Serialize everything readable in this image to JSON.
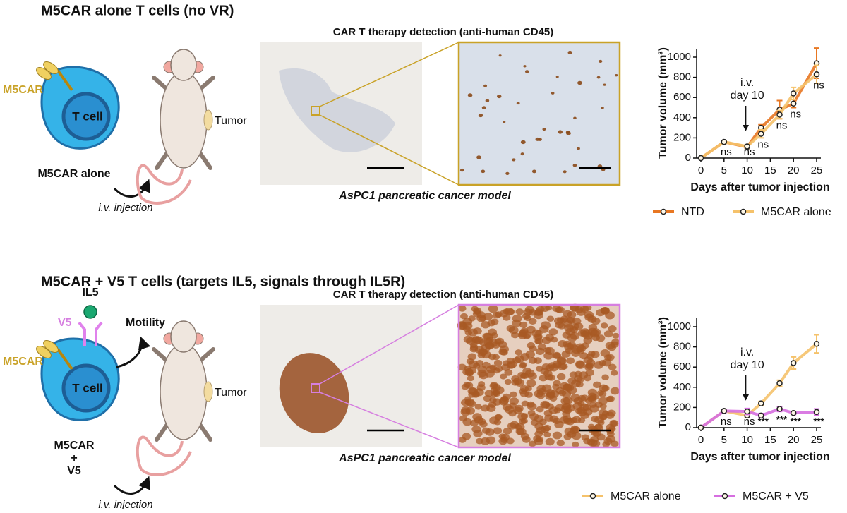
{
  "panels": [
    {
      "title": "M5CAR alone T cells (no VR)",
      "car_label": "M5CAR",
      "cell_label": "T cell",
      "tumor_label": "Tumor",
      "treatment": [
        "M5CAR alone"
      ],
      "route": "i.v. injection",
      "ihc_title": "CAR T therapy detection (anti-human CD45)",
      "model": "AsPC1 pancreatic cancer model"
    },
    {
      "title": "M5CAR + V5 T cells (targets IL5, signals through IL5R)",
      "ligand_label": "IL5",
      "receptor_label": "V5",
      "effect_label": "Motility",
      "car_label": "M5CAR",
      "cell_label": "T cell",
      "tumor_label": "Tumor",
      "treatment": [
        "M5CAR",
        "+",
        "V5"
      ],
      "route": "i.v. injection",
      "ihc_title": "CAR T therapy detection (anti-human CD45)",
      "model": "AsPC1 pancreatic cancer  model"
    }
  ],
  "chart_data": [
    {
      "type": "line",
      "xlabel": "Days after tumor injection",
      "ylabel": "Tumor volume (mm³)",
      "x": [
        0,
        5,
        10,
        13,
        17,
        20,
        25
      ],
      "xlim": [
        0,
        25
      ],
      "xticks": [
        0,
        5,
        10,
        15,
        20,
        25
      ],
      "ylim": [
        0,
        1000
      ],
      "yticks": [
        0,
        200,
        400,
        600,
        800,
        1000
      ],
      "series": [
        {
          "name": "NTD",
          "color": "#e87722",
          "values": [
            0,
            160,
            110,
            300,
            480,
            540,
            940
          ],
          "errors": [
            0,
            15,
            15,
            30,
            90,
            40,
            150
          ]
        },
        {
          "name": "M5CAR alone",
          "color": "#f5c26b",
          "values": [
            0,
            160,
            115,
            240,
            430,
            640,
            830
          ],
          "errors": [
            0,
            15,
            15,
            40,
            40,
            60,
            90
          ]
        }
      ],
      "significance": [
        null,
        "ns",
        "ns",
        "ns",
        "ns",
        "ns",
        "ns"
      ],
      "annotation": [
        "i.v.",
        "day 10"
      ],
      "annotation_x": 10
    },
    {
      "type": "line",
      "xlabel": "Days after tumor injection",
      "ylabel": "Tumor volume (mm³)",
      "x": [
        0,
        5,
        10,
        13,
        17,
        20,
        25
      ],
      "xlim": [
        0,
        25
      ],
      "xticks": [
        0,
        5,
        10,
        15,
        20,
        25
      ],
      "ylim": [
        0,
        1000
      ],
      "yticks": [
        0,
        200,
        400,
        600,
        800,
        1000
      ],
      "series": [
        {
          "name": "M5CAR alone",
          "color": "#f5c26b",
          "values": [
            0,
            165,
            120,
            240,
            440,
            640,
            830
          ],
          "errors": [
            0,
            10,
            15,
            20,
            30,
            60,
            90
          ]
        },
        {
          "name": "M5CAR + V5",
          "color": "#d66ee0",
          "values": [
            0,
            165,
            160,
            120,
            185,
            145,
            155
          ],
          "errors": [
            0,
            15,
            30,
            20,
            25,
            15,
            30
          ]
        }
      ],
      "significance": [
        null,
        "ns",
        "ns",
        "***",
        "***",
        "***",
        "***"
      ],
      "annotation": [
        "i.v.",
        "day 10"
      ],
      "annotation_x": 10
    }
  ]
}
